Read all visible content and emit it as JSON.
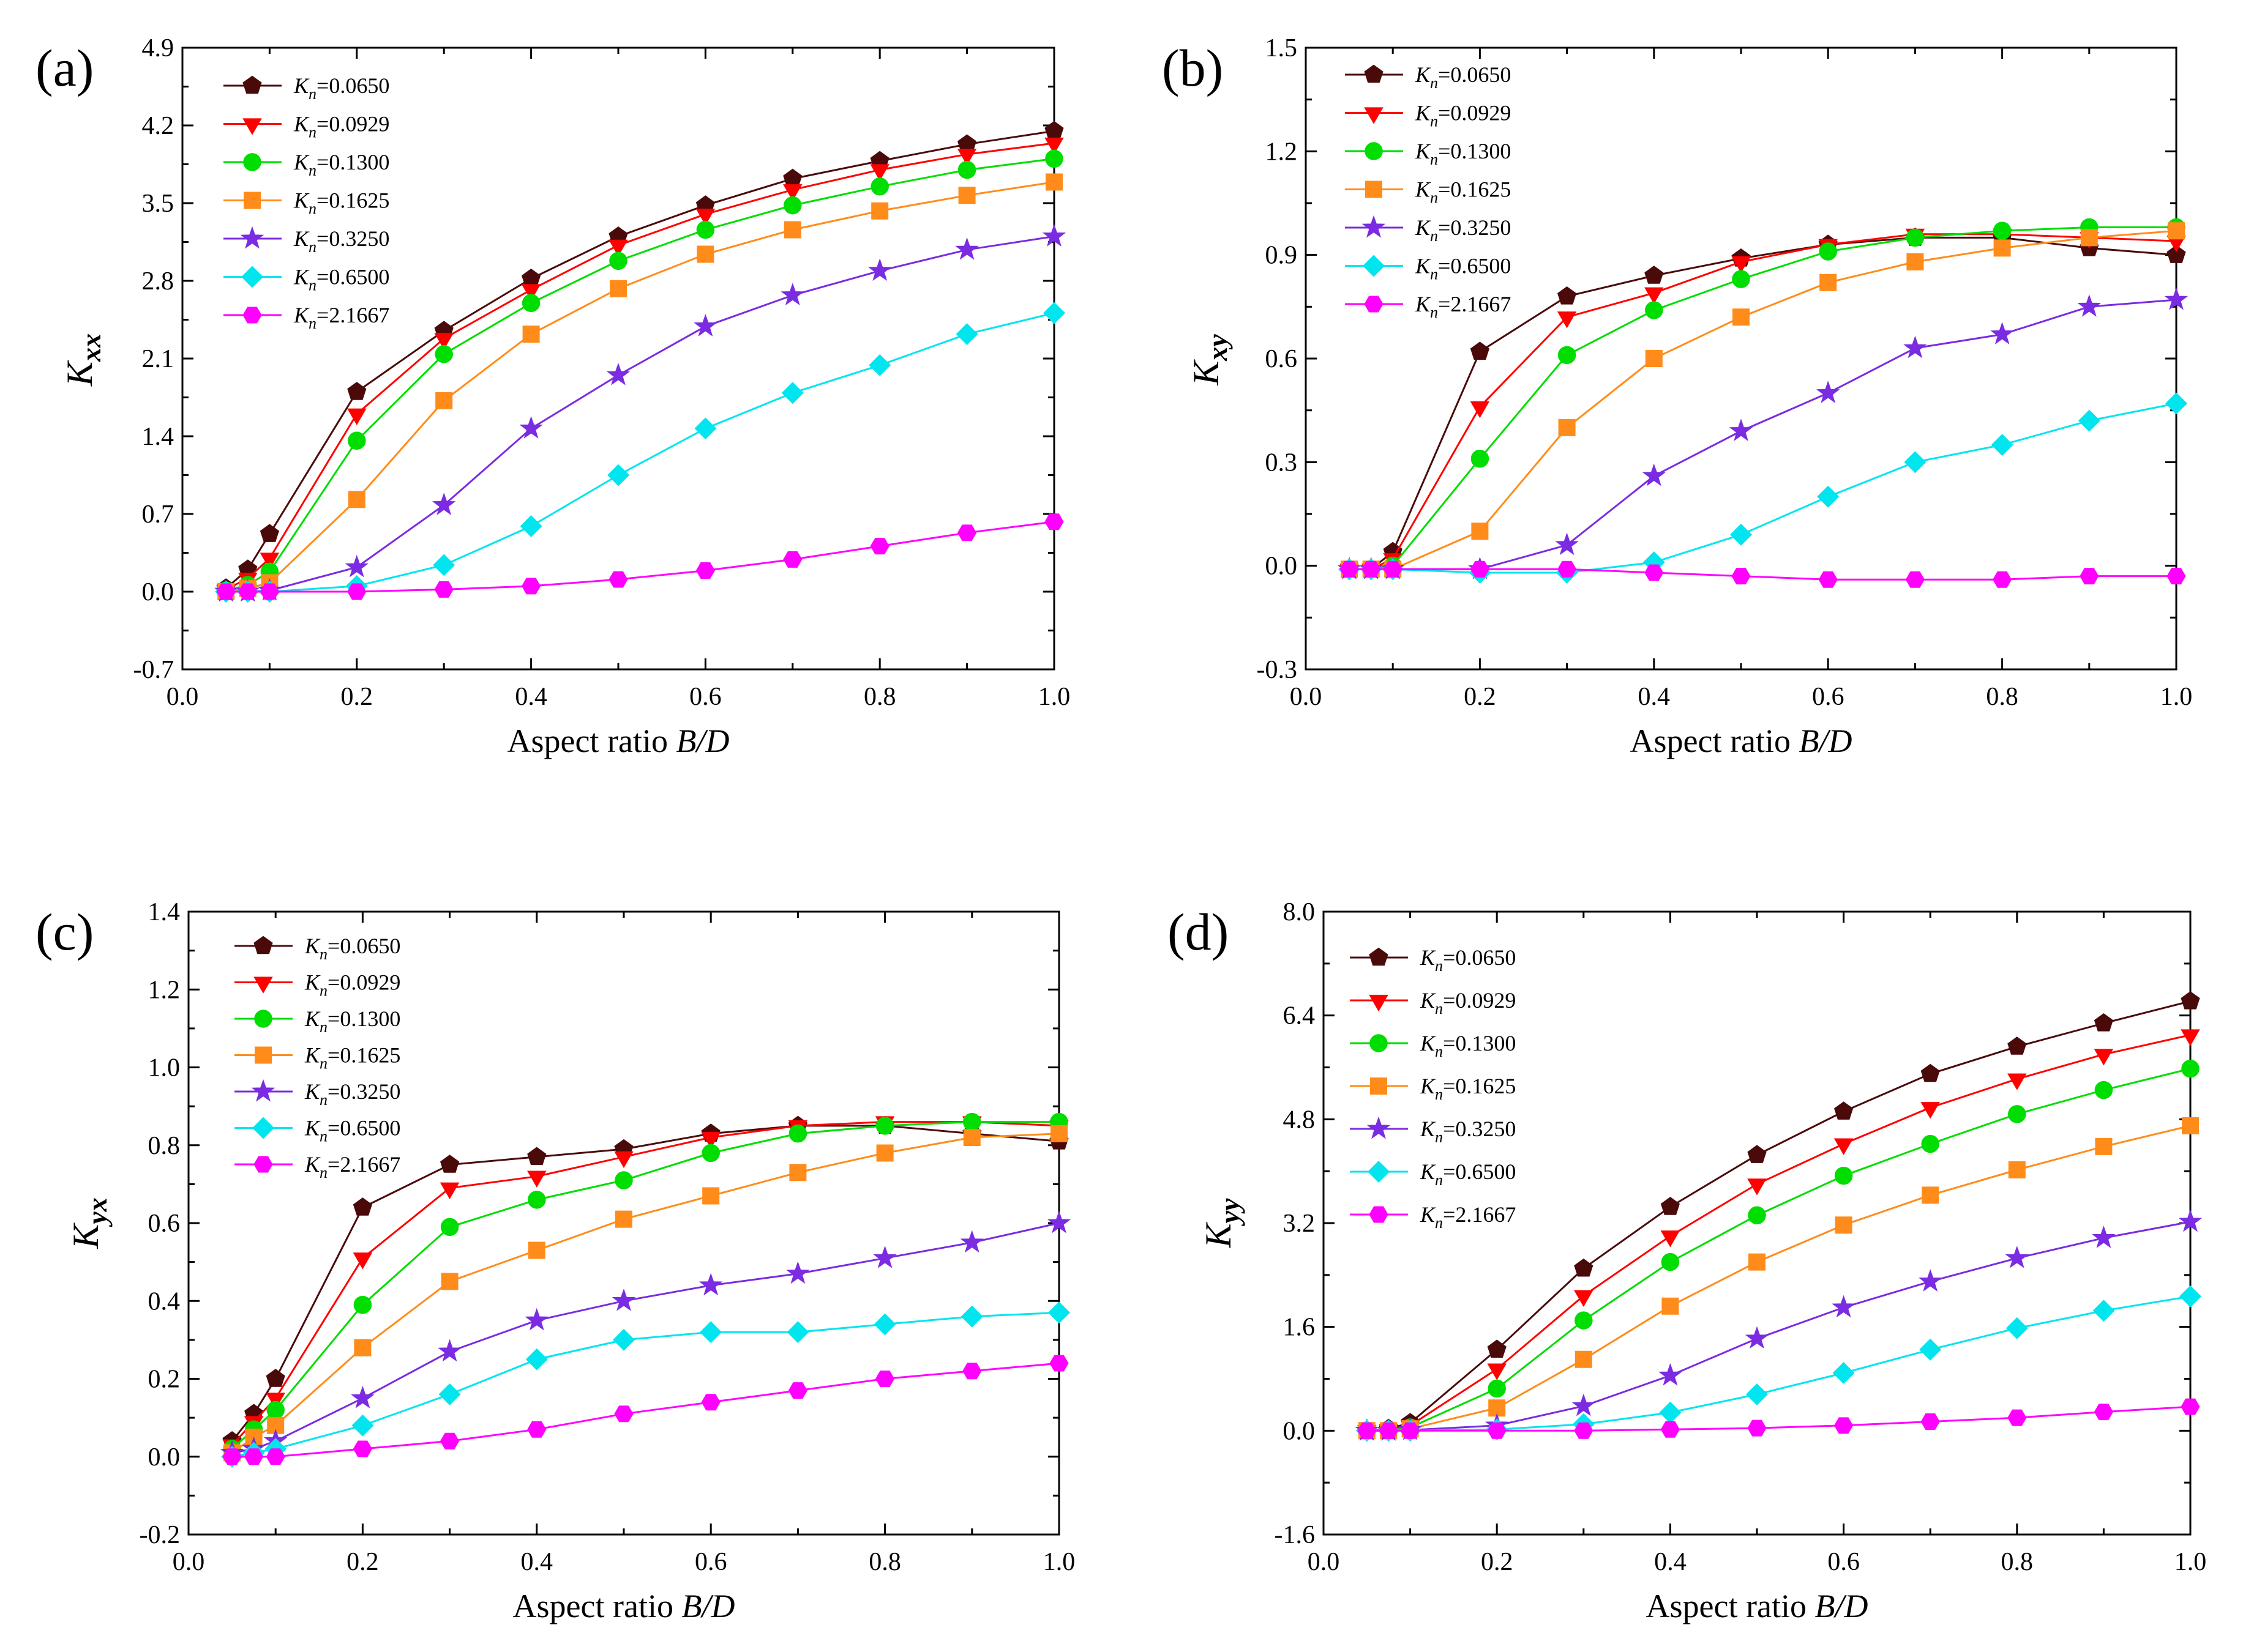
{
  "figure": {
    "legend_prefix": "K",
    "legend_subscript": "n"
  },
  "series_styles": [
    {
      "name": "0.0650",
      "color": "#4a0a0a",
      "marker": "pentagon"
    },
    {
      "name": "0.0929",
      "color": "#ff0000",
      "marker": "triangle-down"
    },
    {
      "name": "0.1300",
      "color": "#00dd00",
      "marker": "circle"
    },
    {
      "name": "0.1625",
      "color": "#ff8c1a",
      "marker": "square"
    },
    {
      "name": "0.3250",
      "color": "#7b2be2",
      "marker": "star"
    },
    {
      "name": "0.6500",
      "color": "#00e5ee",
      "marker": "diamond"
    },
    {
      "name": "2.1667",
      "color": "#ff00ff",
      "marker": "hexagon"
    }
  ],
  "chart_data": [
    {
      "panel": "(a)",
      "type": "line",
      "ylabel_main": "K",
      "ylabel_sub": "xx",
      "xlabel": "Aspect ratio",
      "xlabel_var": "B/D",
      "xlim": [
        0.0,
        1.0
      ],
      "ylim": [
        -0.7,
        4.9
      ],
      "xticks": [
        "0.0",
        "0.2",
        "0.4",
        "0.6",
        "0.8",
        "1.0"
      ],
      "yticks": [
        "-0.7",
        "0.0",
        "0.7",
        "1.4",
        "2.1",
        "2.8",
        "3.5",
        "4.2",
        "4.9"
      ],
      "x": [
        0.05,
        0.075,
        0.1,
        0.2,
        0.3,
        0.4,
        0.5,
        0.6,
        0.7,
        0.8,
        0.9,
        1.0
      ],
      "legend_entries": [
        "=0.0650",
        "=0.0929",
        "=0.1300",
        "=0.1625",
        "=0.3250",
        "=0.6500",
        "=2.1667"
      ],
      "series": [
        {
          "name": "Kn=0.0650",
          "values": [
            0.03,
            0.2,
            0.52,
            1.8,
            2.35,
            2.82,
            3.2,
            3.48,
            3.72,
            3.88,
            4.03,
            4.15
          ]
        },
        {
          "name": "Kn=0.0929",
          "values": [
            0.02,
            0.12,
            0.3,
            1.6,
            2.28,
            2.72,
            3.12,
            3.4,
            3.62,
            3.8,
            3.94,
            4.04
          ]
        },
        {
          "name": "Kn=0.1300",
          "values": [
            0.01,
            0.06,
            0.18,
            1.36,
            2.14,
            2.6,
            2.98,
            3.26,
            3.48,
            3.65,
            3.8,
            3.9
          ]
        },
        {
          "name": "Kn=0.1625",
          "values": [
            0.0,
            0.03,
            0.08,
            0.83,
            1.72,
            2.32,
            2.73,
            3.04,
            3.26,
            3.43,
            3.57,
            3.69
          ]
        },
        {
          "name": "Kn=0.3250",
          "values": [
            0.0,
            0.0,
            0.01,
            0.22,
            0.78,
            1.47,
            1.95,
            2.39,
            2.67,
            2.89,
            3.08,
            3.2
          ]
        },
        {
          "name": "Kn=0.6500",
          "values": [
            0.0,
            0.0,
            0.0,
            0.05,
            0.24,
            0.59,
            1.05,
            1.47,
            1.79,
            2.04,
            2.32,
            2.51
          ]
        },
        {
          "name": "Kn=2.1667",
          "values": [
            0.0,
            0.0,
            0.0,
            0.0,
            0.02,
            0.05,
            0.11,
            0.19,
            0.29,
            0.41,
            0.53,
            0.63
          ]
        }
      ]
    },
    {
      "panel": "(b)",
      "type": "line",
      "ylabel_main": "K",
      "ylabel_sub": "xy",
      "xlabel": "Aspect ratio",
      "xlabel_var": "B/D",
      "xlim": [
        0.0,
        1.0
      ],
      "ylim": [
        -0.3,
        1.5
      ],
      "xticks": [
        "0.0",
        "0.2",
        "0.4",
        "0.6",
        "0.8",
        "1.0"
      ],
      "yticks": [
        "-0.3",
        "0.0",
        "0.3",
        "0.6",
        "0.9",
        "1.2",
        "1.5"
      ],
      "x": [
        0.05,
        0.075,
        0.1,
        0.2,
        0.3,
        0.4,
        0.5,
        0.6,
        0.7,
        0.8,
        0.9,
        1.0
      ],
      "legend_entries": [
        "=0.0650",
        "=0.0929",
        "=0.1300",
        "=0.1625",
        "=0.3250",
        "=0.6500",
        "=2.1667"
      ],
      "series": [
        {
          "name": "Kn=0.0650",
          "values": [
            -0.01,
            -0.01,
            0.04,
            0.62,
            0.78,
            0.84,
            0.89,
            0.93,
            0.95,
            0.95,
            0.92,
            0.9
          ]
        },
        {
          "name": "Kn=0.0929",
          "values": [
            -0.01,
            -0.01,
            0.02,
            0.46,
            0.72,
            0.79,
            0.88,
            0.93,
            0.96,
            0.96,
            0.95,
            0.94
          ]
        },
        {
          "name": "Kn=0.1300",
          "values": [
            -0.01,
            -0.01,
            0.0,
            0.31,
            0.61,
            0.74,
            0.83,
            0.91,
            0.95,
            0.97,
            0.98,
            0.98
          ]
        },
        {
          "name": "Kn=0.1625",
          "values": [
            -0.01,
            -0.01,
            -0.01,
            0.1,
            0.4,
            0.6,
            0.72,
            0.82,
            0.88,
            0.92,
            0.95,
            0.97
          ]
        },
        {
          "name": "Kn=0.3250",
          "values": [
            -0.01,
            -0.01,
            -0.01,
            -0.01,
            0.06,
            0.26,
            0.39,
            0.5,
            0.63,
            0.67,
            0.75,
            0.77
          ]
        },
        {
          "name": "Kn=0.6500",
          "values": [
            -0.01,
            -0.01,
            -0.01,
            -0.02,
            -0.02,
            0.01,
            0.09,
            0.2,
            0.3,
            0.35,
            0.42,
            0.47
          ]
        },
        {
          "name": "Kn=2.1667",
          "values": [
            -0.01,
            -0.01,
            -0.01,
            -0.01,
            -0.01,
            -0.02,
            -0.03,
            -0.04,
            -0.04,
            -0.04,
            -0.03,
            -0.03
          ]
        }
      ]
    },
    {
      "panel": "(c)",
      "type": "line",
      "ylabel_main": "K",
      "ylabel_sub": "yx",
      "xlabel": "Aspect ratio",
      "xlabel_var": "B/D",
      "xlim": [
        0.0,
        1.0
      ],
      "ylim": [
        -0.2,
        1.4
      ],
      "xticks": [
        "0.0",
        "0.2",
        "0.4",
        "0.6",
        "0.8",
        "1.0"
      ],
      "yticks": [
        "-0.2",
        "0.0",
        "0.2",
        "0.4",
        "0.6",
        "0.8",
        "1.0",
        "1.2",
        "1.4"
      ],
      "x": [
        0.05,
        0.075,
        0.1,
        0.2,
        0.3,
        0.4,
        0.5,
        0.6,
        0.7,
        0.8,
        0.9,
        1.0
      ],
      "legend_entries": [
        "=0.0650",
        "=0.0929",
        "=0.1300",
        "=0.1625",
        "=0.3250",
        "=0.6500",
        "=2.1667"
      ],
      "series": [
        {
          "name": "Kn=0.0650",
          "values": [
            0.04,
            0.11,
            0.2,
            0.64,
            0.75,
            0.77,
            0.79,
            0.83,
            0.85,
            0.85,
            0.83,
            0.81
          ]
        },
        {
          "name": "Kn=0.0929",
          "values": [
            0.03,
            0.09,
            0.15,
            0.51,
            0.69,
            0.72,
            0.77,
            0.82,
            0.85,
            0.86,
            0.86,
            0.85
          ]
        },
        {
          "name": "Kn=0.1300",
          "values": [
            0.02,
            0.07,
            0.12,
            0.39,
            0.59,
            0.66,
            0.71,
            0.78,
            0.83,
            0.85,
            0.86,
            0.86
          ]
        },
        {
          "name": "Kn=0.1625",
          "values": [
            0.01,
            0.05,
            0.08,
            0.28,
            0.45,
            0.53,
            0.61,
            0.67,
            0.73,
            0.78,
            0.82,
            0.83
          ]
        },
        {
          "name": "Kn=0.3250",
          "values": [
            0.01,
            0.02,
            0.04,
            0.15,
            0.27,
            0.35,
            0.4,
            0.44,
            0.47,
            0.51,
            0.55,
            0.6
          ]
        },
        {
          "name": "Kn=0.6500",
          "values": [
            0.0,
            0.01,
            0.02,
            0.08,
            0.16,
            0.25,
            0.3,
            0.32,
            0.32,
            0.34,
            0.36,
            0.37
          ]
        },
        {
          "name": "Kn=2.1667",
          "values": [
            0.0,
            0.0,
            0.0,
            0.02,
            0.04,
            0.07,
            0.11,
            0.14,
            0.17,
            0.2,
            0.22,
            0.24
          ]
        }
      ]
    },
    {
      "panel": "(d)",
      "type": "line",
      "ylabel_main": "K",
      "ylabel_sub": "yy",
      "xlabel": "Aspect ratio",
      "xlabel_var": "B/D",
      "xlim": [
        0.0,
        1.0
      ],
      "ylim": [
        -1.6,
        8.0
      ],
      "xticks": [
        "0.0",
        "0.2",
        "0.4",
        "0.6",
        "0.8",
        "1.0"
      ],
      "yticks": [
        "-1.6",
        "0.0",
        "1.6",
        "3.2",
        "4.8",
        "6.4",
        "8.0"
      ],
      "x": [
        0.05,
        0.075,
        0.1,
        0.2,
        0.3,
        0.4,
        0.5,
        0.6,
        0.7,
        0.8,
        0.9,
        1.0
      ],
      "legend_entries": [
        "=0.0650",
        "=0.0929",
        "=0.1300",
        "=0.1625",
        "=0.3250",
        "=0.6500",
        "=2.1667"
      ],
      "series": [
        {
          "name": "Kn=0.0650",
          "values": [
            0.0,
            0.03,
            0.12,
            1.25,
            2.5,
            3.45,
            4.25,
            4.92,
            5.5,
            5.92,
            6.28,
            6.62
          ]
        },
        {
          "name": "Kn=0.0929",
          "values": [
            0.0,
            0.02,
            0.08,
            0.95,
            2.08,
            3.0,
            3.8,
            4.42,
            4.98,
            5.42,
            5.8,
            6.1
          ]
        },
        {
          "name": "Kn=0.1300",
          "values": [
            0.0,
            0.01,
            0.05,
            0.65,
            1.7,
            2.6,
            3.32,
            3.93,
            4.42,
            4.88,
            5.25,
            5.58
          ]
        },
        {
          "name": "Kn=0.1625",
          "values": [
            0.0,
            0.0,
            0.03,
            0.35,
            1.1,
            1.92,
            2.6,
            3.17,
            3.63,
            4.02,
            4.38,
            4.7
          ]
        },
        {
          "name": "Kn=0.3250",
          "values": [
            0.0,
            0.0,
            0.01,
            0.08,
            0.38,
            0.85,
            1.42,
            1.9,
            2.3,
            2.66,
            2.97,
            3.22
          ]
        },
        {
          "name": "Kn=0.6500",
          "values": [
            0.0,
            0.0,
            0.0,
            0.02,
            0.1,
            0.28,
            0.56,
            0.89,
            1.25,
            1.58,
            1.85,
            2.07
          ]
        },
        {
          "name": "Kn=2.1667",
          "values": [
            0.0,
            0.0,
            0.0,
            0.0,
            0.0,
            0.02,
            0.04,
            0.08,
            0.14,
            0.2,
            0.29,
            0.37
          ]
        }
      ]
    }
  ]
}
